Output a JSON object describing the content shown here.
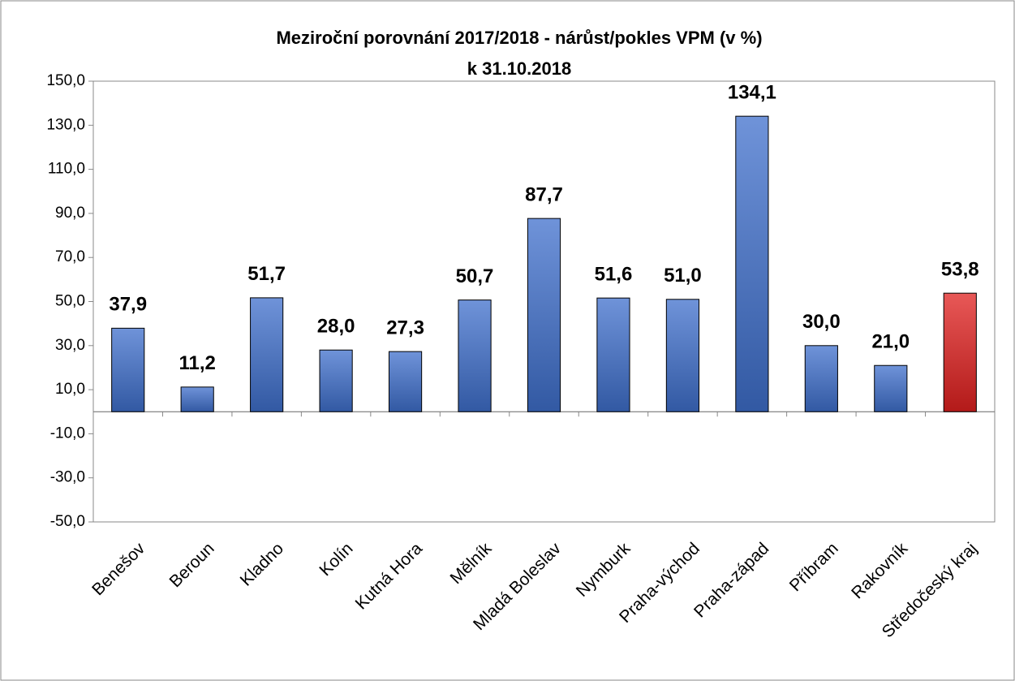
{
  "chart_data": {
    "type": "bar",
    "title": "Meziroční porovnání 2017/2018 - nárůst/pokles VPM (v %)",
    "subtitle": "k 31.10.2018",
    "categories": [
      "Benešov",
      "Beroun",
      "Kladno",
      "Kolín",
      "Kutná Hora",
      "Mělník",
      "Mladá Boleslav",
      "Nymburk",
      "Praha-východ",
      "Praha-západ",
      "Příbram",
      "Rakovník",
      "Středočeský kraj"
    ],
    "values": [
      37.9,
      11.2,
      51.7,
      28.0,
      27.3,
      50.7,
      87.7,
      51.6,
      51.0,
      134.1,
      30.0,
      21.0,
      53.8
    ],
    "value_labels": [
      "37,9",
      "11,2",
      "51,7",
      "28,0",
      "27,3",
      "50,7",
      "87,7",
      "51,6",
      "51,0",
      "134,1",
      "30,0",
      "21,0",
      "53,8"
    ],
    "colors": [
      "#3f6fcc",
      "#3f6fcc",
      "#3f6fcc",
      "#3f6fcc",
      "#3f6fcc",
      "#3f6fcc",
      "#3f6fcc",
      "#3f6fcc",
      "#3f6fcc",
      "#3f6fcc",
      "#3f6fcc",
      "#3f6fcc",
      "#e0201f"
    ],
    "ylim": [
      -50,
      150
    ],
    "yticks": [
      {
        "value": -50,
        "label": "-50,0"
      },
      {
        "value": -30,
        "label": "-30,0"
      },
      {
        "value": -10,
        "label": "-10,0"
      },
      {
        "value": 10,
        "label": "10,0"
      },
      {
        "value": 30,
        "label": "30,0"
      },
      {
        "value": 50,
        "label": "50,0"
      },
      {
        "value": 70,
        "label": "70,0"
      },
      {
        "value": 90,
        "label": "90,0"
      },
      {
        "value": 110,
        "label": "110,0"
      },
      {
        "value": 130,
        "label": "130,0"
      },
      {
        "value": 150,
        "label": "150,0"
      }
    ],
    "grid": false
  }
}
